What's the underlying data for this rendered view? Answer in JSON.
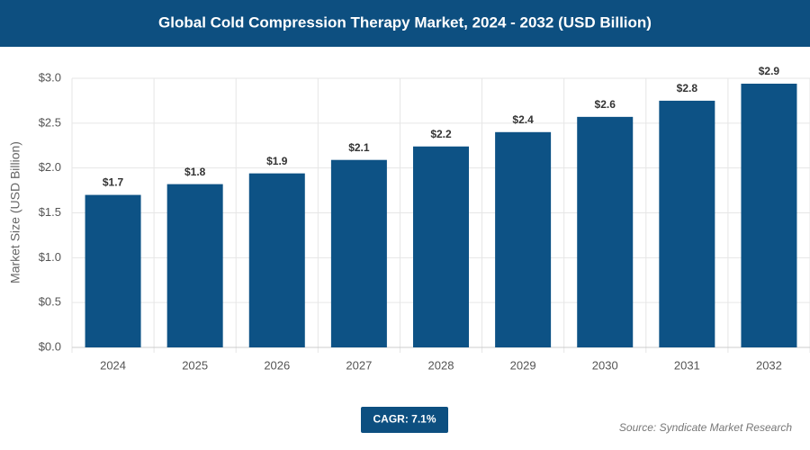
{
  "chart_data": {
    "type": "bar",
    "title": "Global Cold Compression Therapy Market, 2024 - 2032 (USD Billion)",
    "y_label": "Market Size (USD Billion)",
    "categories": [
      "2024",
      "2025",
      "2026",
      "2027",
      "2028",
      "2029",
      "2030",
      "2031",
      "2032"
    ],
    "values": [
      1.7,
      1.82,
      1.94,
      2.09,
      2.24,
      2.4,
      2.57,
      2.75,
      2.94
    ],
    "value_labels": [
      "$1.7",
      "$1.8",
      "$1.9",
      "$2.1",
      "$2.2",
      "$2.4",
      "$2.6",
      "$2.8",
      "$2.9"
    ],
    "color": "#0d5285",
    "ylim": [
      0,
      3
    ],
    "yticks": [
      {
        "value": 0,
        "label": "$0.0"
      },
      {
        "value": 0.5,
        "label": "$0.5"
      },
      {
        "value": 1,
        "label": "$1.0"
      },
      {
        "value": 1.5,
        "label": "$1.5"
      },
      {
        "value": 2,
        "label": "$2.0"
      },
      {
        "value": 2.5,
        "label": "$2.5"
      },
      {
        "value": 3,
        "label": "$3.0"
      }
    ],
    "grid": true,
    "annotation": "CAGR: 7.1%",
    "source": "Source: Syndicate Market Research"
  }
}
